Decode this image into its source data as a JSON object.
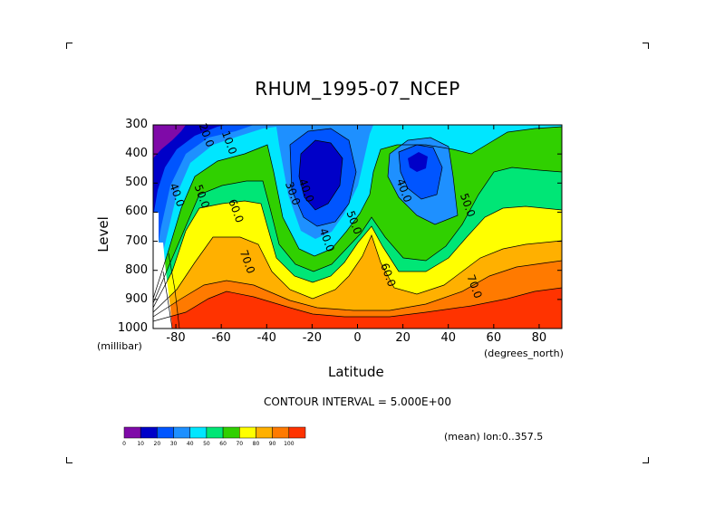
{
  "title": "RHUM_1995-07_NCEP",
  "contour_interval": "CONTOUR INTERVAL = 5.000E+00",
  "mean_label": "(mean) lon:0..357.5",
  "chart_data": {
    "type": "heatmap",
    "title": "RHUM_1995-07_NCEP",
    "xlabel": "Latitude",
    "ylabel": "Level",
    "x_unit": "(degrees_north)",
    "y_unit": "(millibar)",
    "xlim": [
      -90,
      90
    ],
    "ylim": [
      1000,
      300
    ],
    "x_ticks": [
      "-80",
      "-60",
      "-40",
      "-20",
      "0",
      "20",
      "40",
      "60",
      "80"
    ],
    "y_ticks": [
      "300",
      "400",
      "500",
      "600",
      "700",
      "800",
      "900",
      "1000"
    ],
    "contour_labels": [
      {
        "text": "20.0",
        "lat": -68,
        "lev": 340
      },
      {
        "text": "10.0",
        "lat": -58,
        "lev": 365
      },
      {
        "text": "40.0",
        "lat": -81,
        "lev": 545
      },
      {
        "text": "50.0",
        "lat": -70,
        "lev": 550
      },
      {
        "text": "60.0",
        "lat": -55,
        "lev": 600
      },
      {
        "text": "30.0",
        "lat": -30,
        "lev": 540
      },
      {
        "text": "40.0",
        "lat": -24,
        "lev": 530
      },
      {
        "text": "40.0",
        "lat": -15,
        "lev": 700
      },
      {
        "text": "50.0",
        "lat": -3,
        "lev": 640
      },
      {
        "text": "40.0",
        "lat": 19,
        "lev": 530
      },
      {
        "text": "50.0",
        "lat": 47,
        "lev": 580
      },
      {
        "text": "70.0",
        "lat": -50,
        "lev": 775
      },
      {
        "text": "60.0",
        "lat": 12,
        "lev": 820
      },
      {
        "text": "70.0",
        "lat": 50,
        "lev": 860
      }
    ],
    "colorbar": {
      "ticks": [
        "0",
        "10",
        "20",
        "30",
        "40",
        "50",
        "60",
        "70",
        "80",
        "90",
        "100"
      ],
      "colors": [
        "#7f0aa8",
        "#0000c8",
        "#0055ff",
        "#1e90ff",
        "#00e6ff",
        "#00e676",
        "#30d000",
        "#ffff00",
        "#ffb000",
        "#ff7a00",
        "#ff3300"
      ]
    },
    "fill_colors": {
      "violet": "#7f0aa8",
      "dark_blue": "#0000c8",
      "blue": "#0055ff",
      "light_blue": "#1e90ff",
      "cyan": "#00e6ff",
      "green": "#00e676",
      "green2": "#30d000",
      "yellow": "#ffff00",
      "orange": "#ffb000",
      "dark_orange": "#ff7a00",
      "red": "#ff3300"
    }
  }
}
